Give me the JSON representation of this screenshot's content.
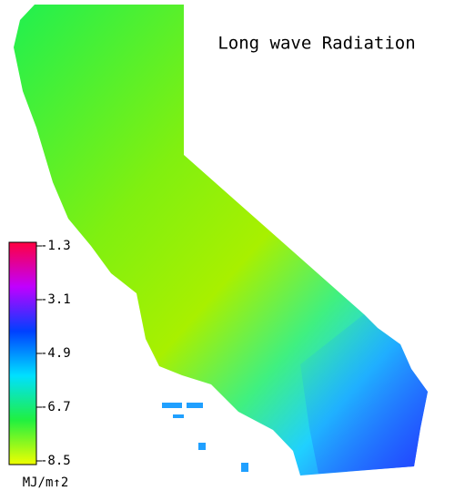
{
  "title": "Long wave Radiation",
  "colorbar": {
    "ticks": [
      -1.3,
      -3.1,
      -4.9,
      -6.7,
      -8.5
    ],
    "unit": "MJ/m↑2",
    "colors": [
      "#ff0040",
      "#c000ff",
      "#0040ff",
      "#00e0ff",
      "#20f040",
      "#f0ff00"
    ]
  }
}
